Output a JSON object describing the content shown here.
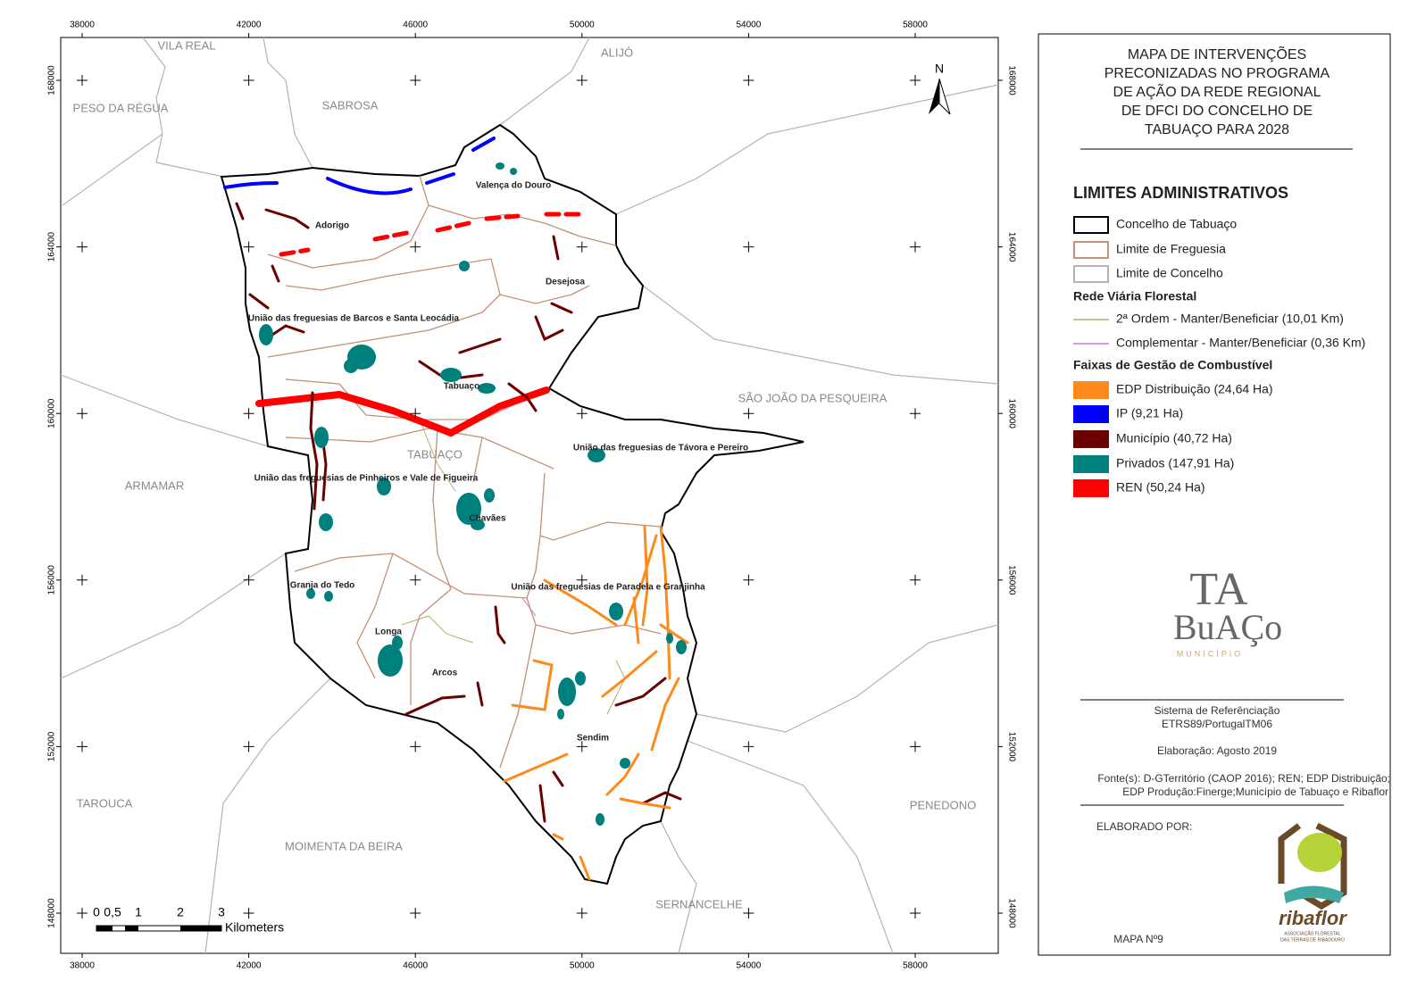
{
  "map": {
    "x_ticks": [
      38000,
      42000,
      46000,
      50000,
      54000,
      58000
    ],
    "y_ticks": [
      168000,
      164000,
      160000,
      156000,
      152000,
      148000
    ],
    "concelhos": [
      "VILA REAL",
      "ALIJÓ",
      "PESO DA RÉGUA",
      "SABROSA",
      "SÃO JOÃO DA PESQUEIRA",
      "ARMAMAR",
      "TAROUCA",
      "MOIMENTA DA BEIRA",
      "SERNANCELHE",
      "PENEDONO",
      "TABUAÇO"
    ],
    "freguesias": [
      "Valença do Douro",
      "Adorigo",
      "Desejosa",
      "União das freguesias de Barcos e Santa Leocádia",
      "Tabuaço",
      "União das freguesias de Távora e Pereiro",
      "União das freguesias de Pinheiros e Vale de Figueira",
      "Chavães",
      "União das freguesias de Paradela e Granjinha",
      "Granja do Tedo",
      "Longa",
      "Arcos",
      "Sendim"
    ],
    "north": "N",
    "scale": {
      "ticks": [
        "0",
        "0,5",
        "1",
        "2",
        "3"
      ],
      "unit": "Kilometers"
    }
  },
  "legend": {
    "title": [
      "MAPA DE INTERVENÇÕES",
      "PRECONIZADAS NO PROGRAMA",
      "DE AÇÃO DA REDE REGIONAL",
      "DE DFCI DO CONCELHO DE",
      "TABUAÇO PARA 2028"
    ],
    "sections": [
      {
        "title": "LIMITES ADMINISTRATIVOS",
        "items": [
          {
            "name": "Concelho de Tabuaço",
            "color": "#000000",
            "kind": "outline"
          },
          {
            "name": "Limite de Freguesia",
            "color": "#c39078",
            "kind": "outline"
          },
          {
            "name": "Limite de Concelho",
            "color": "#b4b4b4",
            "kind": "outline"
          }
        ]
      },
      {
        "title": "Rede Viária Florestal",
        "items": [
          {
            "name": "2ª Ordem - Manter/Beneficiar (10,01 Km)",
            "color": "#b3b36b",
            "kind": "line"
          },
          {
            "name": "Complementar - Manter/Beneficiar (0,36 Km)",
            "color": "#c27fd3",
            "kind": "line"
          }
        ]
      },
      {
        "title": "Faixas de Gestão de Combustível",
        "items": [
          {
            "name": "EDP Distribuição (24,64 Ha)",
            "color": "#ff8a1c",
            "kind": "fill"
          },
          {
            "name": "IP (9,21 Ha)",
            "color": "#0000ff",
            "kind": "fill"
          },
          {
            "name": "Município (40,72 Ha)",
            "color": "#6b0000",
            "kind": "fill"
          },
          {
            "name": "Privados (147,91 Ha)",
            "color": "#00807d",
            "kind": "fill"
          },
          {
            "name": "REN (50,24 Ha)",
            "color": "#ff0000",
            "kind": "fill"
          }
        ]
      }
    ]
  },
  "logo": {
    "line1": "TA",
    "line2": "BuAÇo",
    "sub": "MUNICÍPIO"
  },
  "info": {
    "ref_title": "Sistema de Referênciação",
    "ref": "ETRS89/PortugalTM06",
    "date": "Elaboração: Agosto 2019",
    "source1": "Fonte(s): D-GTerritório (CAOP 2016); REN; EDP Distribuição;",
    "source2": "EDP Produção:Finerge;Município de Tabuaço e Ribaflor",
    "author": "ELABORADO POR:",
    "map_no": "MAPA Nº9"
  },
  "ribaflor": {
    "name": "ribaflor",
    "sub1": "ASSOCIAÇÃO FLORESTAL",
    "sub2": "DAS TERRAS DE RIBADOURO"
  }
}
